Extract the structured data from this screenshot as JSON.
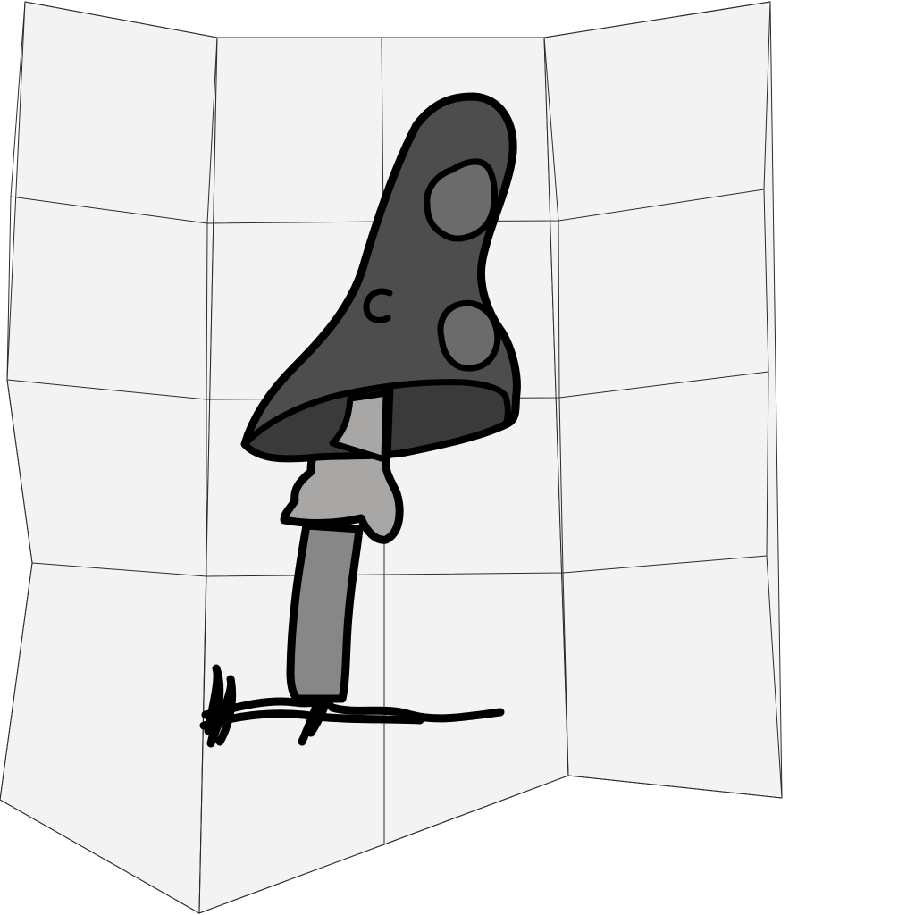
{
  "canvas": {
    "background": "#ffffff",
    "panel_fill": "#f3f3f3",
    "grid_stroke": "#2b2b2b"
  },
  "drawing": {
    "subject": "mushroom-icon",
    "colors": {
      "cap": "#4d4d4d",
      "cap_underside": "#3a3a3a",
      "cap_spots": "#6b6b6b",
      "ring": "#a9a6a6",
      "stem": "#878787",
      "outline": "#000000"
    }
  }
}
